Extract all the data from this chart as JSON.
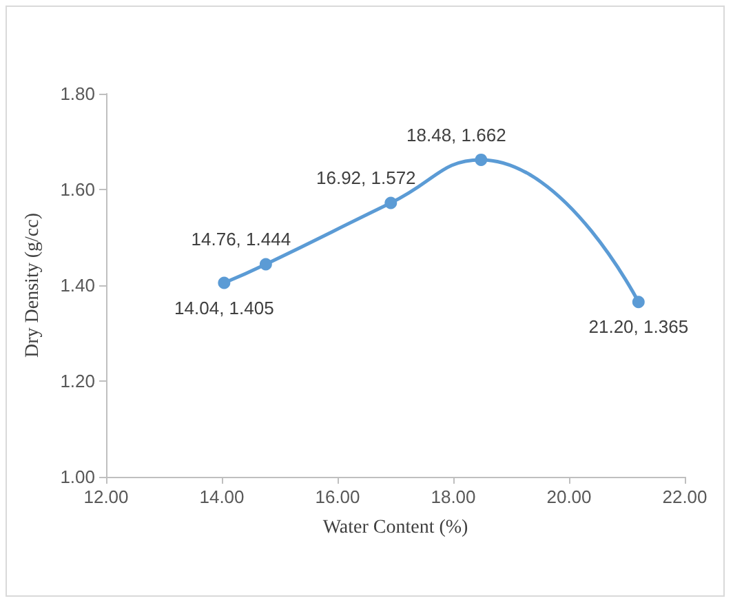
{
  "chart_data": {
    "type": "line",
    "xlabel": "Water Content (%)",
    "ylabel": "Dry Density (g/cc)",
    "x": [
      14.04,
      14.76,
      16.92,
      18.48,
      21.2
    ],
    "series": [
      {
        "color": "#5b9bd5",
        "values": [
          1.405,
          1.444,
          1.572,
          1.662,
          1.365
        ],
        "value_labels": [
          "14.04, 1.405",
          "14.76, 1.444",
          "16.92, 1.572",
          "18.48, 1.662",
          "21.20, 1.365"
        ]
      }
    ],
    "xlim": [
      12,
      22
    ],
    "xticks": [
      {
        "value": 12,
        "label": "12.00"
      },
      {
        "value": 14,
        "label": "14.00"
      },
      {
        "value": 16,
        "label": "16.00"
      },
      {
        "value": 18,
        "label": "18.00"
      },
      {
        "value": 20,
        "label": "20.00"
      },
      {
        "value": 22,
        "label": "22.00"
      }
    ],
    "ylim": [
      1,
      1.8
    ],
    "yticks": [
      {
        "value": 1,
        "label": "1.00"
      },
      {
        "value": 1.2,
        "label": "1.20"
      },
      {
        "value": 1.4,
        "label": "1.40"
      },
      {
        "value": 1.6,
        "label": "1.60"
      },
      {
        "value": 1.8,
        "label": "1.80"
      }
    ],
    "grid": false,
    "marker": "circle",
    "line_style": "solid"
  }
}
